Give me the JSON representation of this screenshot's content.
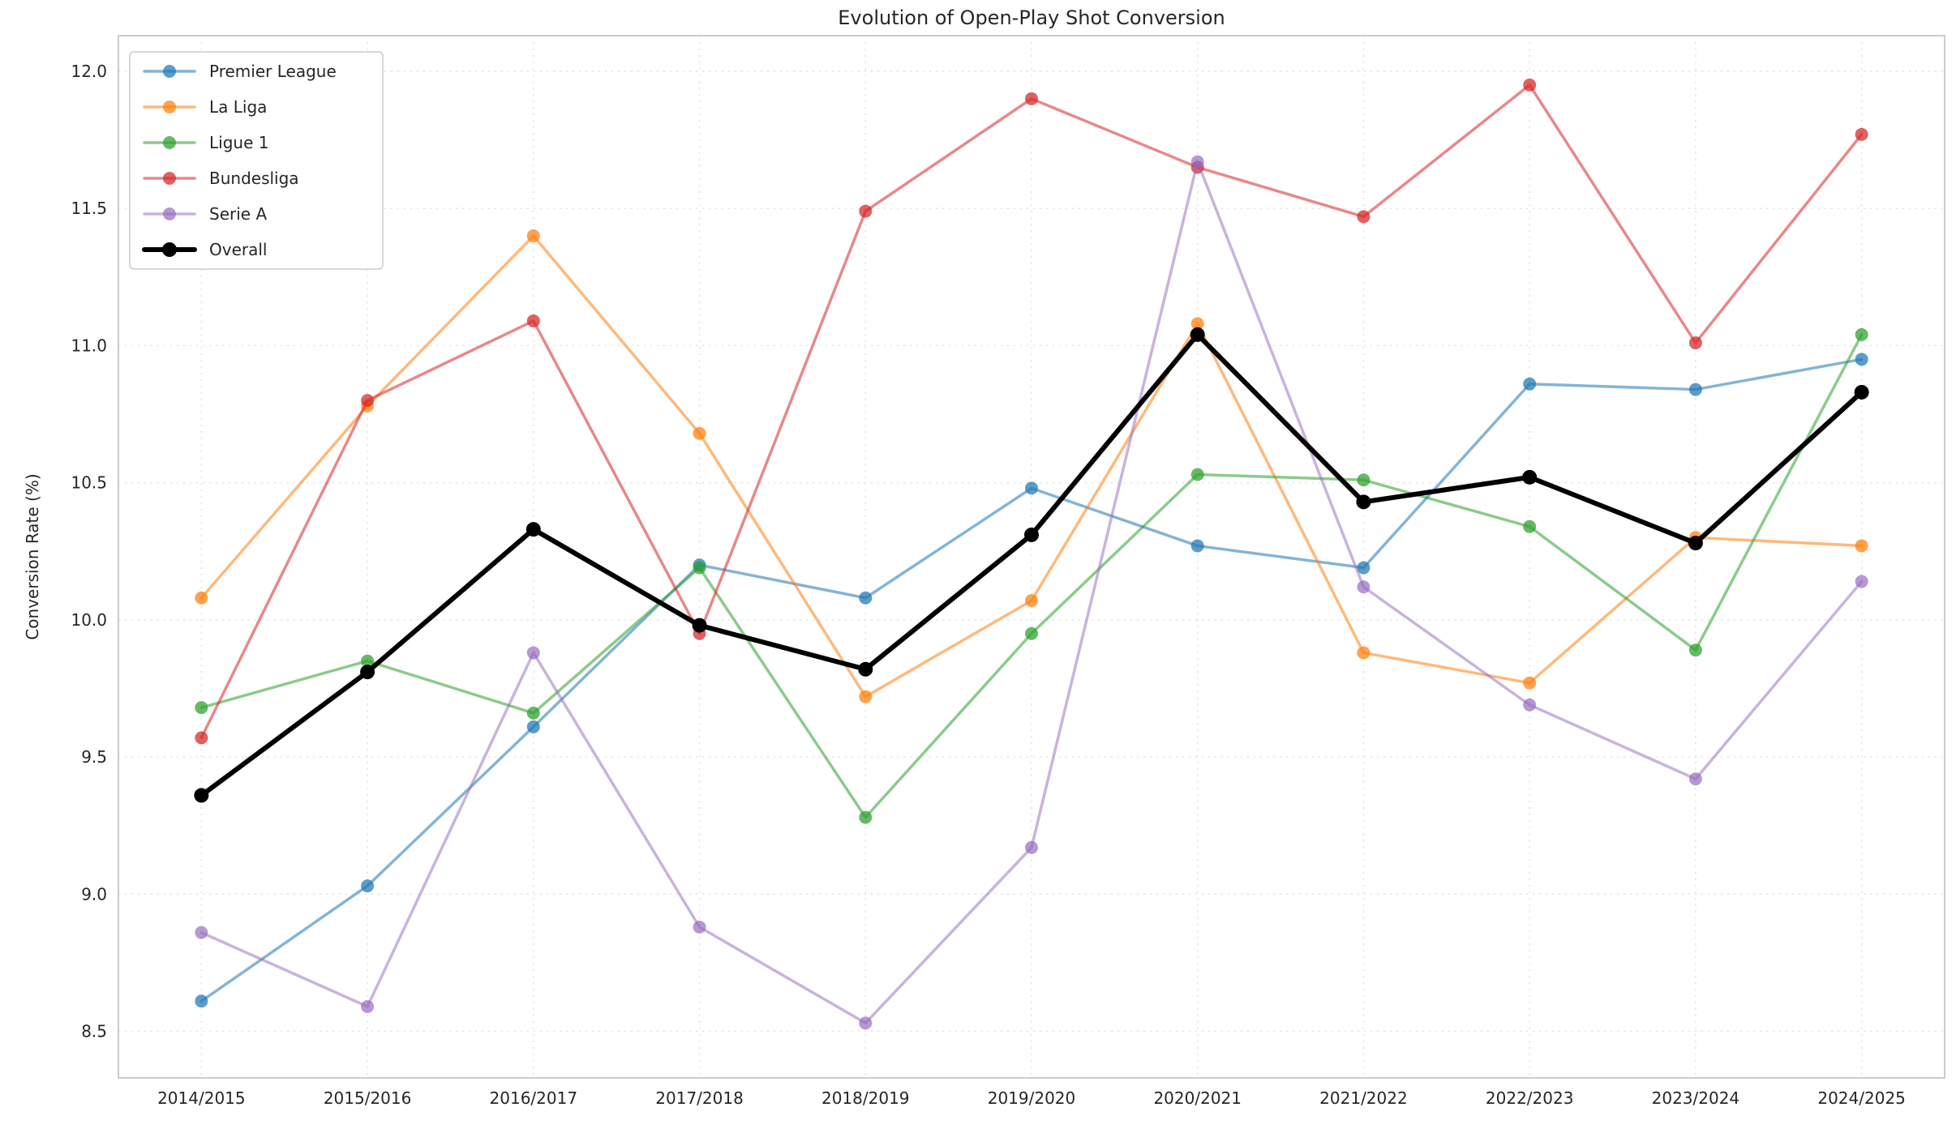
{
  "chart_data": {
    "type": "line",
    "title": "Evolution of Open-Play Shot Conversion",
    "xlabel": "",
    "ylabel": "Conversion Rate (%)",
    "categories": [
      "2014/2015",
      "2015/2016",
      "2016/2017",
      "2017/2018",
      "2018/2019",
      "2019/2020",
      "2020/2021",
      "2021/2022",
      "2022/2023",
      "2023/2024",
      "2024/2025"
    ],
    "ylim": [
      8.33,
      12.13
    ],
    "yticks": [
      8.5,
      9.0,
      9.5,
      10.0,
      10.5,
      11.0,
      11.5,
      12.0
    ],
    "grid": true,
    "legend_position": "upper left",
    "legend_labels": [
      "Premier League",
      "La Liga",
      "Ligue 1",
      "Bundesliga",
      "Serie A",
      "Overall"
    ],
    "series": [
      {
        "name": "Premier League",
        "color": "#1f77b4",
        "alpha": 0.55,
        "line_width": 3.5,
        "values": [
          8.61,
          9.03,
          9.61,
          10.2,
          10.08,
          10.48,
          10.27,
          10.19,
          10.86,
          10.84,
          10.95
        ]
      },
      {
        "name": "La Liga",
        "color": "#ff7f0e",
        "alpha": 0.55,
        "line_width": 3.5,
        "values": [
          10.08,
          10.78,
          11.4,
          10.68,
          9.72,
          10.07,
          11.08,
          9.88,
          9.77,
          10.3,
          10.27
        ]
      },
      {
        "name": "Ligue 1",
        "color": "#2ca02c",
        "alpha": 0.55,
        "line_width": 3.5,
        "values": [
          9.68,
          9.85,
          9.66,
          10.19,
          9.28,
          9.95,
          10.53,
          10.51,
          10.34,
          9.89,
          11.04
        ]
      },
      {
        "name": "Bundesliga",
        "color": "#d62728",
        "alpha": 0.55,
        "line_width": 3.5,
        "values": [
          9.57,
          10.8,
          11.09,
          9.95,
          11.49,
          11.9,
          11.65,
          11.47,
          11.95,
          11.01,
          11.77
        ]
      },
      {
        "name": "Serie A",
        "color": "#9467bd",
        "alpha": 0.5,
        "line_width": 3.5,
        "values": [
          8.86,
          8.59,
          9.88,
          8.88,
          8.53,
          9.17,
          11.67,
          10.12,
          9.69,
          9.42,
          10.14
        ]
      },
      {
        "name": "Overall",
        "color": "#000000",
        "alpha": 1.0,
        "line_width": 6,
        "values": [
          9.36,
          9.81,
          10.33,
          9.98,
          9.82,
          10.31,
          11.04,
          10.43,
          10.52,
          10.28,
          10.83
        ]
      }
    ]
  }
}
